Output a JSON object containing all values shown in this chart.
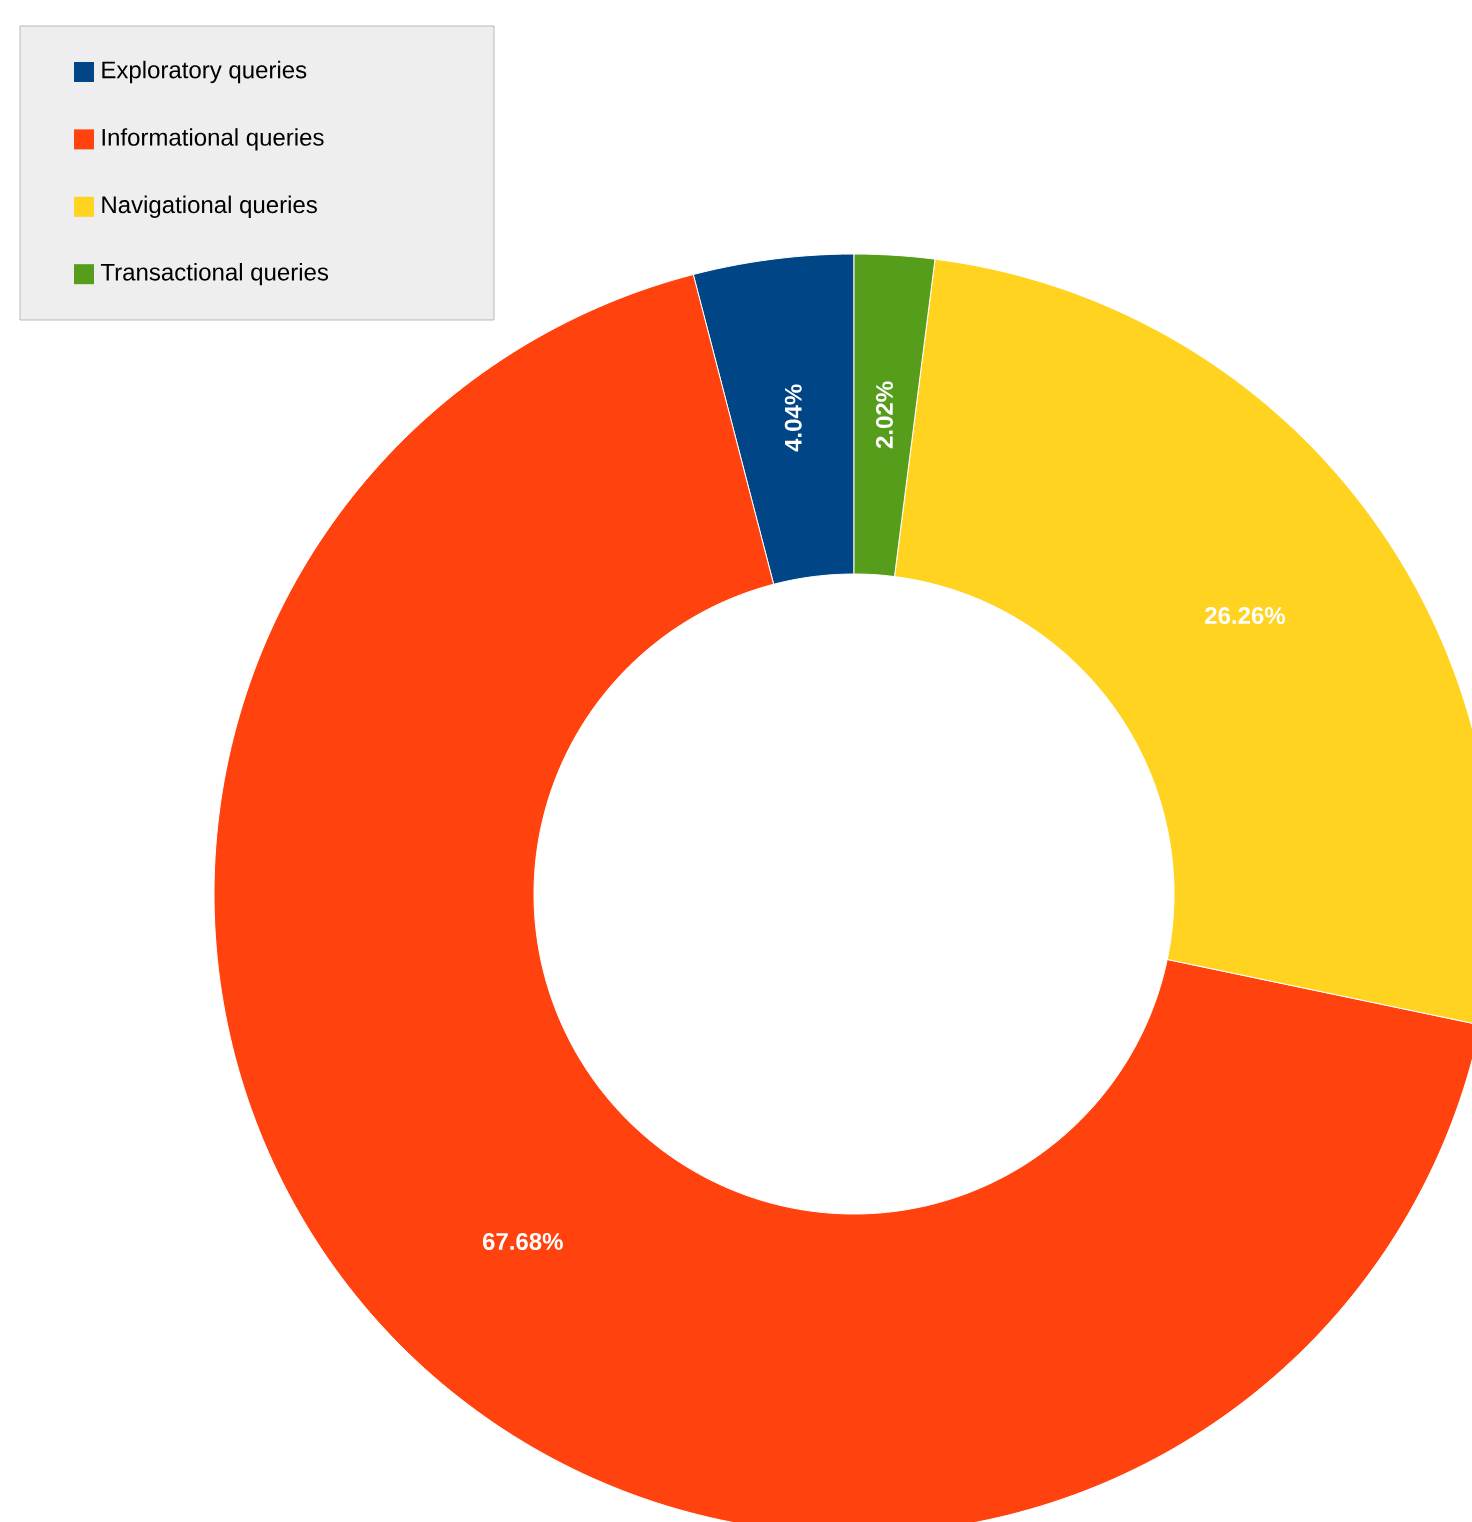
{
  "chart_data": {
    "type": "donut",
    "categories": [
      "Exploratory queries",
      "Informational queries",
      "Navigational queries",
      "Transactional queries"
    ],
    "values": [
      4.04,
      67.68,
      26.26,
      2.02
    ],
    "colors": [
      "#004586",
      "#ff420e",
      "#ffd320",
      "#579d1c"
    ],
    "value_labels": [
      "4.04%",
      "67.68%",
      "26.26%",
      "2.02%"
    ],
    "legend": "top left"
  }
}
